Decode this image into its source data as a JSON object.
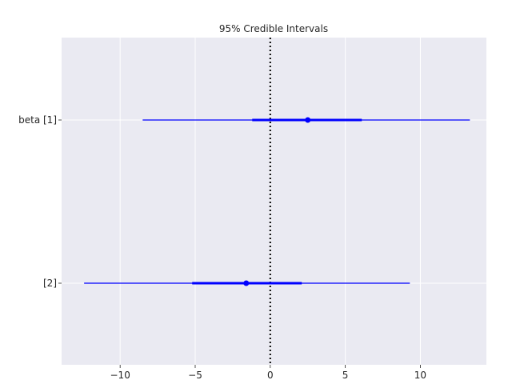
{
  "chart_data": {
    "type": "forest",
    "title": "95% Credible Intervals",
    "xlabel": "",
    "ylabel": "",
    "xlim": [
      -13.9,
      14.4
    ],
    "xticks": [
      -10,
      -5,
      0,
      5,
      10
    ],
    "xtick_labels": [
      "−10",
      "−5",
      "0",
      "5",
      "10"
    ],
    "reference_line": {
      "x": 0,
      "style": "dotted",
      "color": "#000000"
    },
    "grid": true,
    "series_color": "#0000ff",
    "background": "#eaeaf2",
    "rows": [
      {
        "label": "beta [1]",
        "median": 2.5,
        "interval_50": [
          -1.2,
          6.1
        ],
        "interval_95": [
          -8.5,
          13.3
        ]
      },
      {
        "label": "[2]",
        "median": -1.6,
        "interval_50": [
          -5.2,
          2.1
        ],
        "interval_95": [
          -12.4,
          9.3
        ]
      }
    ]
  }
}
